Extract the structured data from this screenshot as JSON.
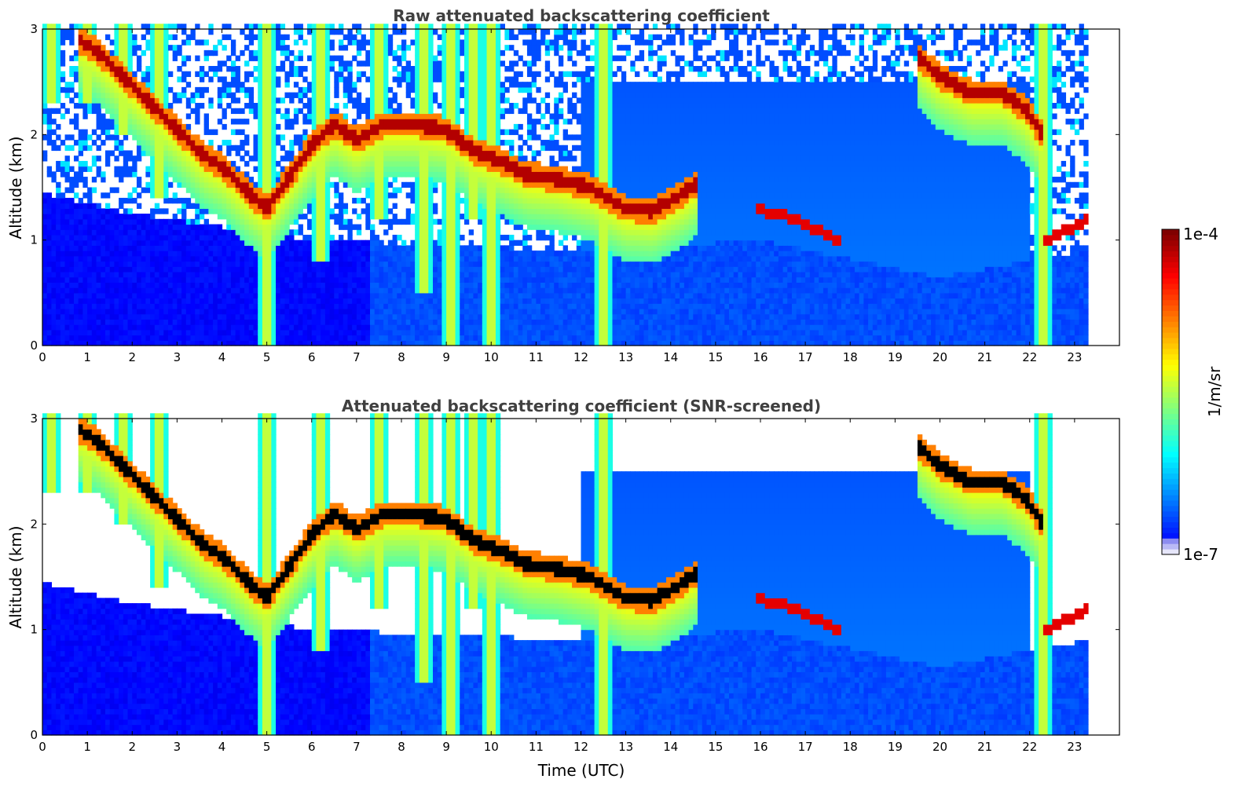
{
  "chart_data": [
    {
      "type": "heatmap",
      "title": "Raw attenuated backscattering coefficient",
      "xlabel": "",
      "ylabel": "Altitude (km)",
      "xlim": [
        0,
        24
      ],
      "ylim": [
        0,
        3
      ],
      "xticks": [
        "0",
        "1",
        "2",
        "3",
        "4",
        "5",
        "6",
        "7",
        "8",
        "9",
        "10",
        "11",
        "12",
        "13",
        "14",
        "15",
        "16",
        "17",
        "18",
        "19",
        "20",
        "21",
        "22",
        "23"
      ],
      "yticks": [
        "0",
        "1",
        "2",
        "3"
      ],
      "data_end_time": 23.3,
      "noise_screened": false,
      "grid": false
    },
    {
      "type": "heatmap",
      "title": "Attenuated backscattering coefficient (SNR-screened)",
      "xlabel": "Time (UTC)",
      "ylabel": "Altitude (km)",
      "xlim": [
        0,
        24
      ],
      "ylim": [
        0,
        3
      ],
      "xticks": [
        "0",
        "1",
        "2",
        "3",
        "4",
        "5",
        "6",
        "7",
        "8",
        "9",
        "10",
        "11",
        "12",
        "13",
        "14",
        "15",
        "16",
        "17",
        "18",
        "19",
        "20",
        "21",
        "22",
        "23"
      ],
      "yticks": [
        "0",
        "1",
        "2",
        "3"
      ],
      "data_end_time": 23.3,
      "noise_screened": true,
      "grid": false
    }
  ],
  "colorbar": {
    "label": "1/m/sr",
    "min_label": "1e-7",
    "max_label": "1e-4",
    "scale": "log",
    "colormap": "jet",
    "colors": [
      "#e6e6fa",
      "#0000ff",
      "#00ffff",
      "#ffff00",
      "#ff0000",
      "#800000"
    ]
  },
  "features": {
    "cloud_layer": [
      [
        0.8,
        2.9
      ],
      [
        1.2,
        2.8
      ],
      [
        3.6,
        1.8
      ],
      [
        4.0,
        1.7
      ],
      [
        4.6,
        1.45
      ],
      [
        5.0,
        1.3
      ],
      [
        6.0,
        1.9
      ],
      [
        6.5,
        2.1
      ],
      [
        7.0,
        1.95
      ],
      [
        7.6,
        2.1
      ],
      [
        8.3,
        2.1
      ],
      [
        9.0,
        2.05
      ],
      [
        9.6,
        1.85
      ],
      [
        10.2,
        1.75
      ],
      [
        10.8,
        1.62
      ],
      [
        11.5,
        1.58
      ],
      [
        12.2,
        1.5
      ],
      [
        13.0,
        1.3
      ],
      [
        13.6,
        1.28
      ],
      [
        14.3,
        1.45
      ],
      [
        14.6,
        1.55
      ]
    ],
    "upper_cloud": [
      [
        19.5,
        2.75
      ],
      [
        20.0,
        2.55
      ],
      [
        20.7,
        2.4
      ],
      [
        21.4,
        2.4
      ],
      [
        21.9,
        2.25
      ],
      [
        22.3,
        2.0
      ]
    ],
    "low_cloud": [
      [
        15.9,
        1.3
      ],
      [
        16.8,
        1.2
      ],
      [
        17.7,
        1.0
      ],
      [
        22.4,
        1.0
      ],
      [
        23.3,
        1.2
      ]
    ],
    "fall_streaks": [
      [
        0.2,
        2.3
      ],
      [
        1.0,
        2.3
      ],
      [
        1.8,
        2.0
      ],
      [
        2.6,
        1.4
      ],
      [
        5.0,
        0.0
      ],
      [
        6.2,
        0.8
      ],
      [
        7.5,
        1.2
      ],
      [
        8.5,
        0.5
      ],
      [
        9.1,
        0.0
      ],
      [
        9.6,
        1.2
      ],
      [
        10.0,
        0.0
      ],
      [
        12.5,
        0.0
      ],
      [
        22.3,
        0.0
      ]
    ],
    "boundary_layer_top": [
      [
        0,
        1.45
      ],
      [
        2.0,
        1.25
      ],
      [
        6.0,
        1.0
      ],
      [
        12.0,
        0.9
      ],
      [
        16.0,
        1.0
      ],
      [
        20.0,
        0.65
      ],
      [
        23.3,
        0.9
      ]
    ]
  }
}
